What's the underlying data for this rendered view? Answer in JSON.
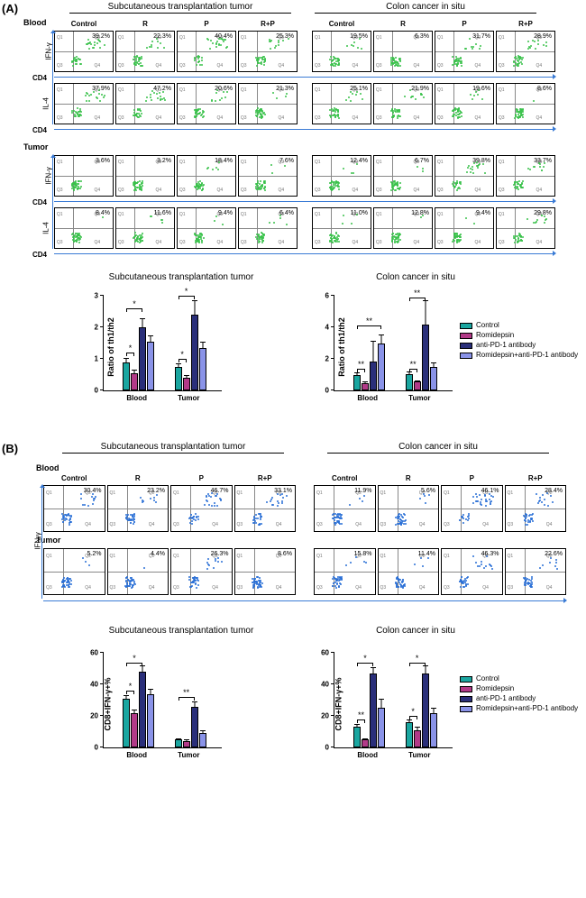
{
  "figure": {
    "panelA": {
      "label": "(A)"
    },
    "panelB": {
      "label": "(B)"
    },
    "headings": {
      "subq": "Subcutaneous transplantation tumor",
      "situ": "Colon cancer in situ"
    },
    "sources": {
      "blood": "Blood",
      "tumor": "Tumor"
    },
    "conditions": [
      "Control",
      "R",
      "P",
      "R+P"
    ],
    "axis_markers": {
      "cd4": "CD4",
      "cd8": "CD8",
      "ifng": "IFN-γ",
      "il4": "IL-4"
    },
    "legend": {
      "items": [
        {
          "label": "Control",
          "color": "#1aa6a0"
        },
        {
          "label": "Romidepsin",
          "color": "#b23a88"
        },
        {
          "label": "anti-PD-1 antibody",
          "color": "#2a2f7a"
        },
        {
          "label": "Romidepsin+anti-PD-1 antibody",
          "color": "#8a93e8"
        }
      ]
    },
    "A": {
      "dotplots_blood_subq_ifng": [
        {
          "pct": "39.2%"
        },
        {
          "pct": "22.3%"
        },
        {
          "pct_sup": "P",
          "pct": "40.4%"
        },
        {
          "pct": "25.3%"
        }
      ],
      "dotplots_blood_situ_ifng": [
        {
          "pct": "19.5%"
        },
        {
          "pct": "6.3%"
        },
        {
          "pct": "31.7%"
        },
        {
          "pct": "28.9%"
        }
      ],
      "dotplots_blood_subq_il4": [
        {
          "pct": "37.9%"
        },
        {
          "pct": "47.2%"
        },
        {
          "pct": "20.6%"
        },
        {
          "pct": "21.3%"
        }
      ],
      "dotplots_blood_situ_il4": [
        {
          "pct": "25.1%"
        },
        {
          "pct": "21.9%"
        },
        {
          "pct": "19.6%"
        },
        {
          "pct": "8.6%"
        }
      ],
      "dotplots_tumor_subq_ifng": [
        {
          "pct": "3.6%"
        },
        {
          "pct": "3.2%"
        },
        {
          "pct": "18.4%"
        },
        {
          "pct": "7.6%"
        }
      ],
      "dotplots_tumor_situ_ifng": [
        {
          "pct": "12.4%"
        },
        {
          "pct": "6.7%"
        },
        {
          "pct": "39.8%"
        },
        {
          "pct": "33.7%"
        }
      ],
      "dotplots_tumor_subq_il4": [
        {
          "pct": "8.4%"
        },
        {
          "pct": "11.6%"
        },
        {
          "pct": "9.4%"
        },
        {
          "pct": "6.4%"
        }
      ],
      "dotplots_tumor_situ_il4": [
        {
          "pct": "11.0%"
        },
        {
          "pct": "12.8%"
        },
        {
          "pct": "9.4%"
        },
        {
          "pct": "29.8%"
        }
      ],
      "bar_label": "Ratio of th1/th2",
      "bar_subq": {
        "ylim": [
          0,
          3
        ],
        "ticks": [
          0,
          1,
          2,
          3
        ],
        "blood": {
          "vals": [
            0.9,
            0.55,
            2.0,
            1.55
          ],
          "errs": [
            0.12,
            0.1,
            0.3,
            0.2
          ]
        },
        "tumor": {
          "vals": [
            0.75,
            0.4,
            2.4,
            1.35
          ],
          "errs": [
            0.1,
            0.08,
            0.45,
            0.2
          ]
        },
        "sig": [
          {
            "where": "blood",
            "from": 0,
            "to": 1,
            "y": 1.2,
            "text": "*"
          },
          {
            "where": "blood",
            "from": 0,
            "to": 2,
            "y": 2.6,
            "text": "*"
          },
          {
            "where": "tumor",
            "from": 0,
            "to": 1,
            "y": 1.0,
            "text": "*"
          },
          {
            "where": "tumor",
            "from": 0,
            "to": 2,
            "y": 3.0,
            "text": "*"
          }
        ]
      },
      "bar_situ": {
        "ylim": [
          0,
          6
        ],
        "ticks": [
          0,
          2,
          4,
          6
        ],
        "blood": {
          "vals": [
            1.0,
            0.45,
            1.85,
            2.95
          ],
          "errs": [
            0.15,
            0.1,
            1.3,
            0.6
          ]
        },
        "tumor": {
          "vals": [
            1.05,
            0.55,
            4.2,
            1.5
          ],
          "errs": [
            0.15,
            0.1,
            1.5,
            0.3
          ]
        },
        "sig": [
          {
            "where": "blood",
            "from": 0,
            "to": 1,
            "y": 1.4,
            "text": "**"
          },
          {
            "where": "blood",
            "from": 0,
            "to": 3,
            "y": 4.1,
            "text": "**"
          },
          {
            "where": "tumor",
            "from": 0,
            "to": 1,
            "y": 1.4,
            "text": "**"
          },
          {
            "where": "tumor",
            "from": 0,
            "to": 2,
            "y": 5.9,
            "text": "**"
          }
        ]
      }
    },
    "B": {
      "dotplots_blood_subq": [
        {
          "pct": "30.4%"
        },
        {
          "pct": "23.2%"
        },
        {
          "pct": "46.7%"
        },
        {
          "pct": "33.1%"
        }
      ],
      "dotplots_blood_situ": [
        {
          "pct": "11.9%"
        },
        {
          "pct": "5.6%"
        },
        {
          "pct": "46.1%"
        },
        {
          "pct": "28.4%"
        }
      ],
      "dotplots_tumor_subq": [
        {
          "pct": "5.2%"
        },
        {
          "pct": "4.4%"
        },
        {
          "pct": "26.3%"
        },
        {
          "pct": "8.6%"
        }
      ],
      "dotplots_tumor_situ": [
        {
          "pct": "15.8%"
        },
        {
          "pct": "11.4%"
        },
        {
          "pct": "46.3%"
        },
        {
          "pct": "22.6%"
        }
      ],
      "bar_label": "CD8+IFN-γ+%",
      "bar_common": {
        "ylim": [
          0,
          60
        ],
        "ticks": [
          0,
          20,
          40,
          60
        ]
      },
      "bar_subq": {
        "blood": {
          "vals": [
            31,
            22,
            48,
            34
          ],
          "errs": [
            2,
            2,
            4,
            3
          ]
        },
        "tumor": {
          "vals": [
            5,
            4,
            26,
            9
          ],
          "errs": [
            1,
            1,
            3,
            2
          ]
        },
        "sig": [
          {
            "where": "blood",
            "from": 0,
            "to": 1,
            "y": 36,
            "text": "*"
          },
          {
            "where": "blood",
            "from": 0,
            "to": 2,
            "y": 54,
            "text": "*"
          },
          {
            "where": "tumor",
            "from": 0,
            "to": 2,
            "y": 32,
            "text": "**"
          }
        ]
      },
      "bar_situ": {
        "blood": {
          "vals": [
            13,
            5,
            47,
            25
          ],
          "errs": [
            2,
            1,
            4,
            6
          ]
        },
        "tumor": {
          "vals": [
            16,
            11,
            47,
            22
          ],
          "errs": [
            2,
            2,
            5,
            3
          ]
        },
        "sig": [
          {
            "where": "blood",
            "from": 0,
            "to": 1,
            "y": 18,
            "text": "**"
          },
          {
            "where": "blood",
            "from": 0,
            "to": 2,
            "y": 54,
            "text": "*"
          },
          {
            "where": "tumor",
            "from": 0,
            "to": 1,
            "y": 20,
            "text": "*"
          },
          {
            "where": "tumor",
            "from": 0,
            "to": 2,
            "y": 54,
            "text": "*"
          }
        ]
      }
    }
  }
}
